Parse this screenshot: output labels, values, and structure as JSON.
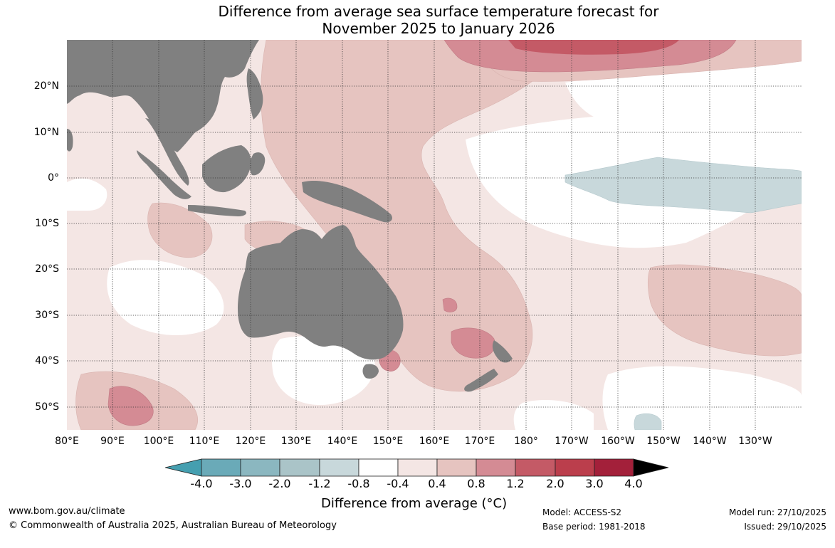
{
  "title": {
    "line1": "Difference from average sea surface temperature forecast for",
    "line2": "November 2025 to January 2026"
  },
  "latitude_labels": [
    "20°N",
    "10°N",
    "0°",
    "10°S",
    "20°S",
    "30°S",
    "40°S",
    "50°S"
  ],
  "longitude_labels": [
    "80°E",
    "90°E",
    "100°E",
    "110°E",
    "120°E",
    "130°E",
    "140°E",
    "150°E",
    "160°E",
    "170°E",
    "180°",
    "170°W",
    "160°W",
    "150°W",
    "140°W",
    "130°W"
  ],
  "colorbar": {
    "label": "Difference from average (°C)",
    "ticks": [
      "-4.0",
      "-3.0",
      "-2.0",
      "-1.2",
      "-0.8",
      "-0.4",
      "0.4",
      "0.8",
      "1.2",
      "2.0",
      "3.0",
      "4.0"
    ],
    "colors": [
      "#459fb0",
      "#6aaab8",
      "#8bb7c0",
      "#aac4c8",
      "#c8d8db",
      "#ffffff",
      "#f4e6e4",
      "#e6c4c0",
      "#d48b94",
      "#c45a66",
      "#bb3e4c",
      "#a3203a"
    ]
  },
  "map_colors": {
    "land": "#808080",
    "neutral": "#ffffff",
    "warm_light": "#f4e6e4",
    "warm_mid": "#e6c4c0",
    "warm_strong": "#d48b94",
    "warm_stronger": "#c45a66",
    "cool_light": "#c8d8db"
  },
  "footer": {
    "website": "www.bom.gov.au/climate",
    "copyright": "© Commonwealth of Australia 2025, Australian Bureau of Meteorology",
    "model": "Model: ACCESS-S2",
    "base_period": "Base period: 1981-2018",
    "model_run": "Model run: 27/10/2025",
    "issued": "Issued: 29/10/2025"
  }
}
